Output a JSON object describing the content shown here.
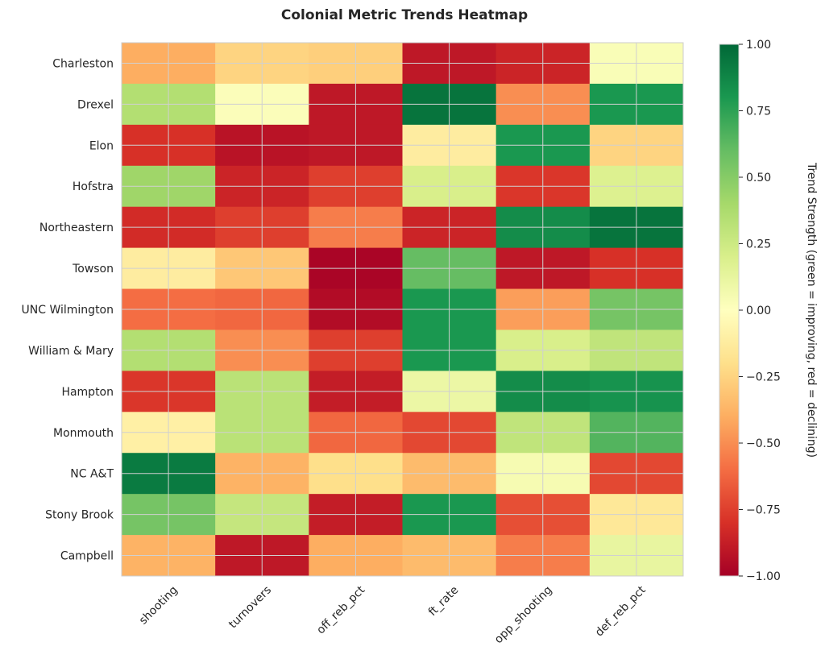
{
  "chart_data": {
    "type": "heatmap",
    "title": "Colonial Metric Trends Heatmap",
    "columns": [
      "shooting",
      "turnovers",
      "off_reb_pct",
      "ft_rate",
      "opp_shooting",
      "def_reb_pct"
    ],
    "rows": [
      "Charleston",
      "Drexel",
      "Elon",
      "Hofstra",
      "Northeastern",
      "Towson",
      "UNC Wilmington",
      "William & Mary",
      "Hampton",
      "Monmouth",
      "NC A&T",
      "Stony Brook",
      "Campbell"
    ],
    "values": [
      [
        -0.4,
        -0.25,
        -0.27,
        -0.9,
        -0.85,
        0.03
      ],
      [
        0.35,
        0.02,
        -0.9,
        0.95,
        -0.5,
        0.8
      ],
      [
        -0.8,
        -0.92,
        -0.9,
        -0.12,
        0.8,
        -0.25
      ],
      [
        0.42,
        -0.85,
        -0.75,
        0.2,
        -0.78,
        0.18
      ],
      [
        -0.82,
        -0.75,
        -0.55,
        -0.85,
        0.85,
        0.95
      ],
      [
        -0.12,
        -0.3,
        -0.98,
        0.6,
        -0.9,
        -0.8
      ],
      [
        -0.6,
        -0.62,
        -0.95,
        0.8,
        -0.45,
        0.55
      ],
      [
        0.35,
        -0.5,
        -0.75,
        0.8,
        0.2,
        0.3
      ],
      [
        -0.78,
        0.32,
        -0.88,
        0.1,
        0.85,
        0.82
      ],
      [
        -0.1,
        0.32,
        -0.62,
        -0.72,
        0.3,
        0.65
      ],
      [
        0.92,
        -0.38,
        -0.2,
        -0.35,
        0.05,
        -0.72
      ],
      [
        0.55,
        0.28,
        -0.88,
        0.8,
        -0.7,
        -0.15
      ],
      [
        -0.38,
        -0.9,
        -0.4,
        -0.35,
        -0.55,
        0.12
      ]
    ],
    "colormap": "RdYlGn",
    "vmin": -1,
    "vmax": 1,
    "colorbar": {
      "label": "Trend Strength (green = improving, red = declining)",
      "ticks": [
        1.0,
        0.75,
        0.5,
        0.25,
        0.0,
        -0.25,
        -0.5,
        -0.75,
        -1.0
      ],
      "tick_labels": [
        "1.00",
        "0.75",
        "0.50",
        "0.25",
        "0.00",
        "−0.25",
        "−0.50",
        "−0.75",
        "−1.00"
      ]
    }
  }
}
